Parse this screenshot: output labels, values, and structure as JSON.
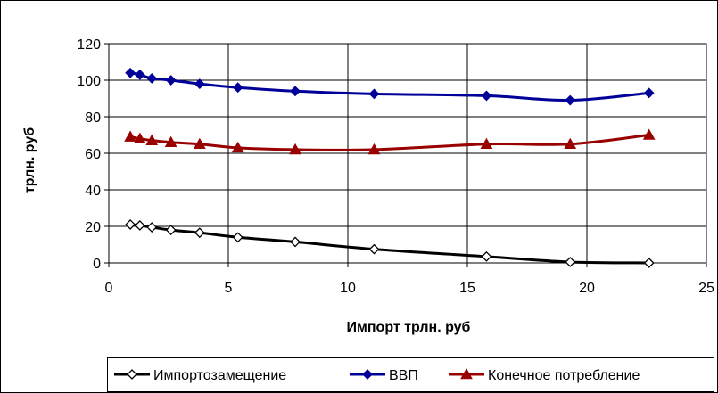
{
  "chart_data": {
    "type": "line",
    "title": "",
    "xlabel": "Импорт трлн. руб",
    "ylabel": "трлн. руб",
    "xlim": [
      0,
      25
    ],
    "ylim": [
      0,
      120
    ],
    "xticks": [
      0,
      5,
      10,
      15,
      20,
      25
    ],
    "yticks": [
      0,
      20,
      40,
      60,
      80,
      100,
      120
    ],
    "grid": "on (major gridlines on both axes)",
    "legend_position": "bottom",
    "series": [
      {
        "name": "Импортозамещение",
        "color": "#000000",
        "marker": "diamond-open",
        "x": [
          0.9,
          1.3,
          1.8,
          2.6,
          3.8,
          5.4,
          7.8,
          11.1,
          15.8,
          19.3,
          22.6
        ],
        "y": [
          21,
          20.5,
          19.5,
          18,
          16.5,
          14,
          11.5,
          7.5,
          3.5,
          0.5,
          0
        ]
      },
      {
        "name": "ВВП",
        "color": "#000099",
        "marker": "diamond-filled",
        "x": [
          0.9,
          1.3,
          1.8,
          2.6,
          3.8,
          5.4,
          7.8,
          11.1,
          15.8,
          19.3,
          22.6
        ],
        "y": [
          104,
          103,
          101,
          100,
          98,
          96,
          94,
          92.5,
          91.5,
          89,
          93
        ]
      },
      {
        "name": "Конечное потребление",
        "color": "#990000",
        "marker": "triangle-filled",
        "x": [
          0.9,
          1.3,
          1.8,
          2.6,
          3.8,
          5.4,
          7.8,
          11.1,
          15.8,
          19.3,
          22.6
        ],
        "y": [
          69,
          68,
          67,
          66,
          65,
          63,
          62,
          62,
          65,
          65,
          70
        ]
      }
    ]
  }
}
